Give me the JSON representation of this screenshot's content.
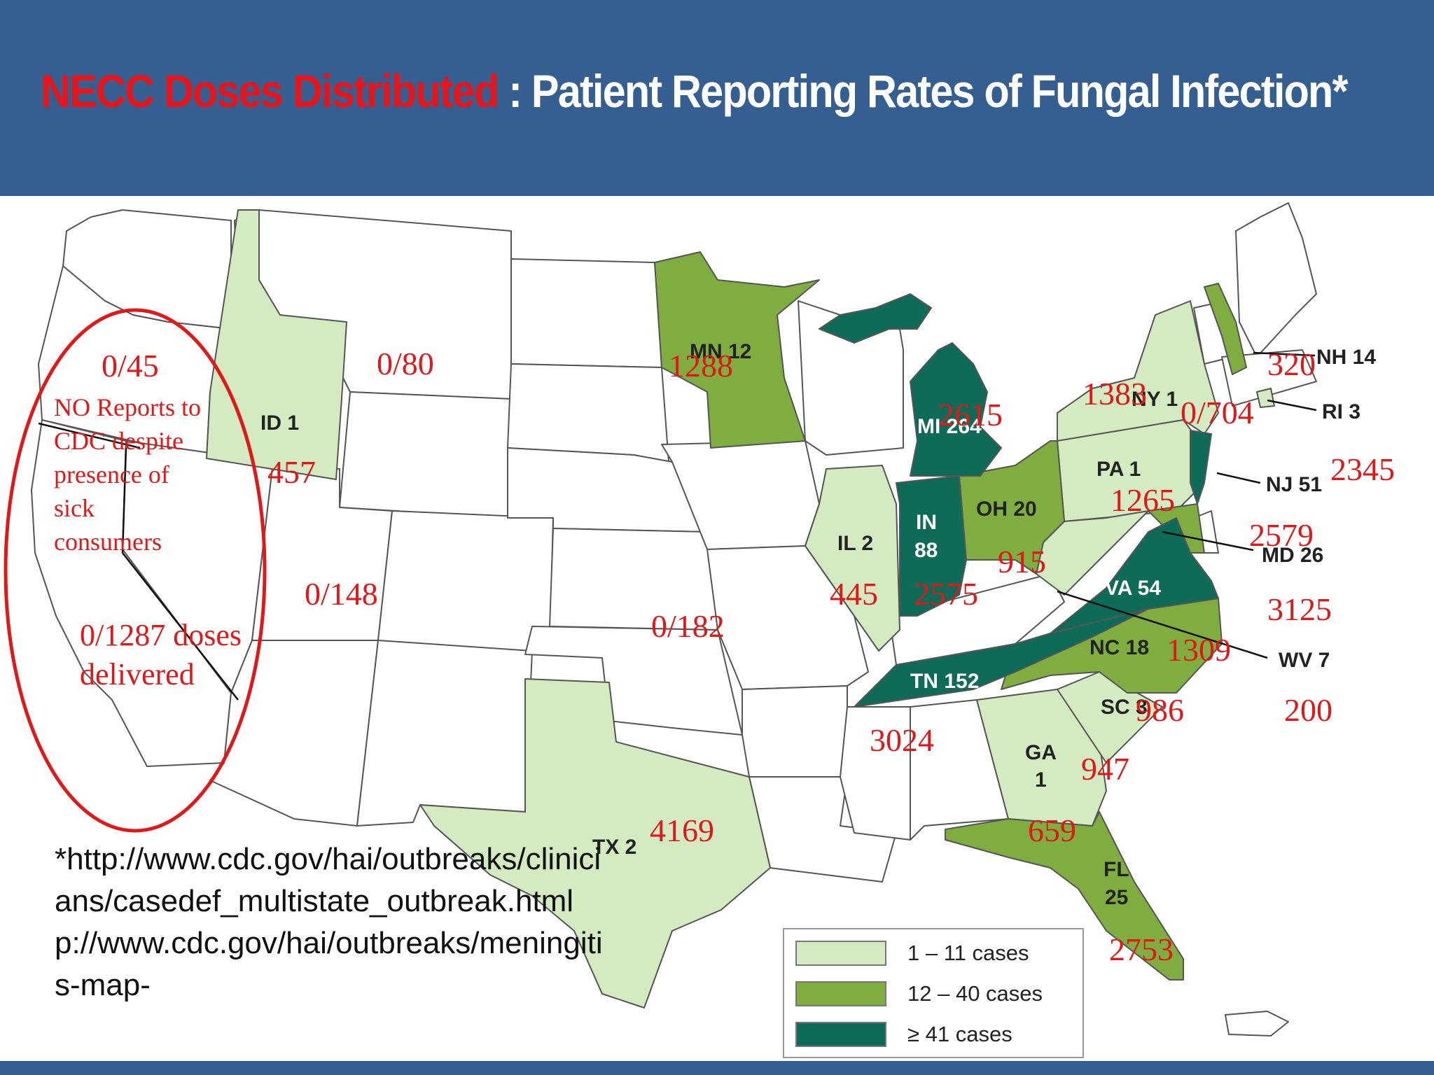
{
  "title": {
    "highlight": "NECC Doses Distributed",
    "rest": " : Patient Reporting Rates of Fungal Infection*"
  },
  "colors": {
    "header": "#355e91",
    "light_green": "#d4eac0",
    "mid_green": "#7fad3f",
    "dark_green": "#0d6b57",
    "annotation_red": "#e01818"
  },
  "states": [
    {
      "id": "ID",
      "label": "ID 1"
    },
    {
      "id": "MN",
      "label": "MN 12"
    },
    {
      "id": "MI",
      "label": "MI 264"
    },
    {
      "id": "IL",
      "label": "IL 2"
    },
    {
      "id": "IN1",
      "label": "IN"
    },
    {
      "id": "IN2",
      "label": "88"
    },
    {
      "id": "OH",
      "label": "OH 20"
    },
    {
      "id": "PA",
      "label": "PA 1"
    },
    {
      "id": "NY",
      "label": "NY 1"
    },
    {
      "id": "NH",
      "label": "NH 14"
    },
    {
      "id": "RI",
      "label": "RI 3"
    },
    {
      "id": "NJ",
      "label": "NJ 51"
    },
    {
      "id": "MD",
      "label": "MD 26"
    },
    {
      "id": "VA",
      "label": "VA 54"
    },
    {
      "id": "WV",
      "label": "WV 7"
    },
    {
      "id": "NC",
      "label": "NC 18"
    },
    {
      "id": "TN",
      "label": "TN 152"
    },
    {
      "id": "SC",
      "label": "SC 3"
    },
    {
      "id": "GA1",
      "label": "GA"
    },
    {
      "id": "GA2",
      "label": "1"
    },
    {
      "id": "FL1",
      "label": "FL"
    },
    {
      "id": "FL2",
      "label": "25"
    },
    {
      "id": "TX",
      "label": "TX 2"
    }
  ],
  "dose_numbers": [
    "0/45",
    "0/80",
    "1288",
    "457",
    "0/148",
    "0/182",
    "445",
    "2575",
    "2615",
    "915",
    "1383",
    "0/704",
    "320",
    "1265",
    "2345",
    "2579",
    "3125",
    "1309",
    "200",
    "986",
    "3024",
    "947",
    "659",
    "4169",
    "2753"
  ],
  "annotation": {
    "no_reports": [
      "NO Reports to",
      "CDC despite",
      "presence of",
      "sick",
      "consumers"
    ],
    "doses_delivered": [
      "0/1287 doses",
      "delivered"
    ]
  },
  "footnote": "*http://www.cdc.gov/hai/outbreaks/clinicians/casedef_multistate_outbreak.htmlp://www.cdc.gov/hai/outbreaks/meningitis-map-",
  "legend": [
    {
      "label": "1 – 11 cases",
      "color": "#d4eac0"
    },
    {
      "label": "12 – 40 cases",
      "color": "#7fad3f"
    },
    {
      "label": "≥ 41 cases",
      "color": "#0d6b57"
    }
  ]
}
